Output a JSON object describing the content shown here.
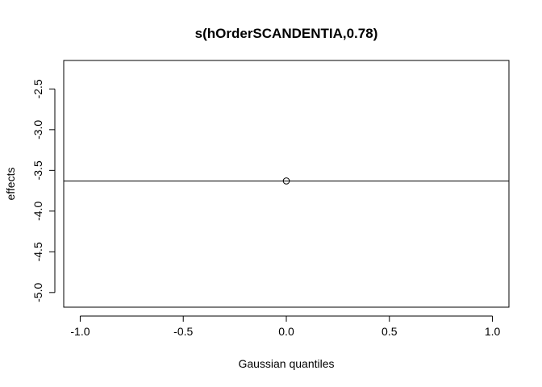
{
  "chart_data": {
    "type": "scatter",
    "title": "s(hOrderSCANDENTIA,0.78)",
    "xlabel": "Gaussian quantiles",
    "ylabel": "effects",
    "xlim": [
      -1.08,
      1.08
    ],
    "ylim": [
      -5.18,
      -2.15
    ],
    "x_ticks": [
      -1.0,
      -0.5,
      0.0,
      0.5,
      1.0
    ],
    "x_tick_labels": [
      "-1.0",
      "-0.5",
      "0.0",
      "0.5",
      "1.0"
    ],
    "y_ticks": [
      -5.0,
      -4.5,
      -4.0,
      -3.5,
      -3.0,
      -2.5
    ],
    "y_tick_labels": [
      "-5.0",
      "-4.5",
      "-4.0",
      "-3.5",
      "-3.0",
      "-2.5"
    ],
    "points": [
      {
        "x": 0.0,
        "y": -3.63
      }
    ],
    "hline": {
      "y": -3.63
    },
    "grid": false,
    "colors": {
      "line": "#000000",
      "point": "#000000",
      "background": "#ffffff"
    }
  }
}
